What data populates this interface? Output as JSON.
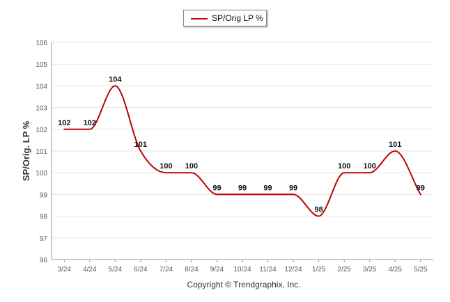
{
  "chart_data": {
    "type": "line",
    "title": "",
    "xlabel": "",
    "ylabel": "SP/Orig. LP %",
    "categories": [
      "3/24",
      "4/24",
      "5/24",
      "6/24",
      "7/24",
      "8/24",
      "9/24",
      "10/24",
      "11/24",
      "12/24",
      "1/25",
      "2/25",
      "3/25",
      "4/25",
      "5/25"
    ],
    "series": [
      {
        "name": "SP/Orig LP %",
        "color": "#c00000",
        "values": [
          102,
          102,
          104,
          101,
          100,
          100,
          99,
          99,
          99,
          99,
          98,
          100,
          100,
          101,
          99
        ],
        "labels": [
          "102",
          "102",
          "104",
          "101",
          "100",
          "100",
          "99",
          "99",
          "99",
          "99",
          "98",
          "100",
          "100",
          "101",
          "99"
        ]
      }
    ],
    "ylim": [
      96,
      106
    ],
    "yticks": [
      "96",
      "97",
      "98",
      "99",
      "100",
      "101",
      "102",
      "103",
      "104",
      "105",
      "106"
    ],
    "grid": true,
    "legend_position": "top-center",
    "smooth": true
  },
  "legend": {
    "label": "SP/Orig LP %"
  },
  "footer": {
    "copyright": "Copyright © Trendgraphix, Inc."
  },
  "colors": {
    "series": "#c00000",
    "grid": "#e6e6e6",
    "axis": "#999999"
  }
}
